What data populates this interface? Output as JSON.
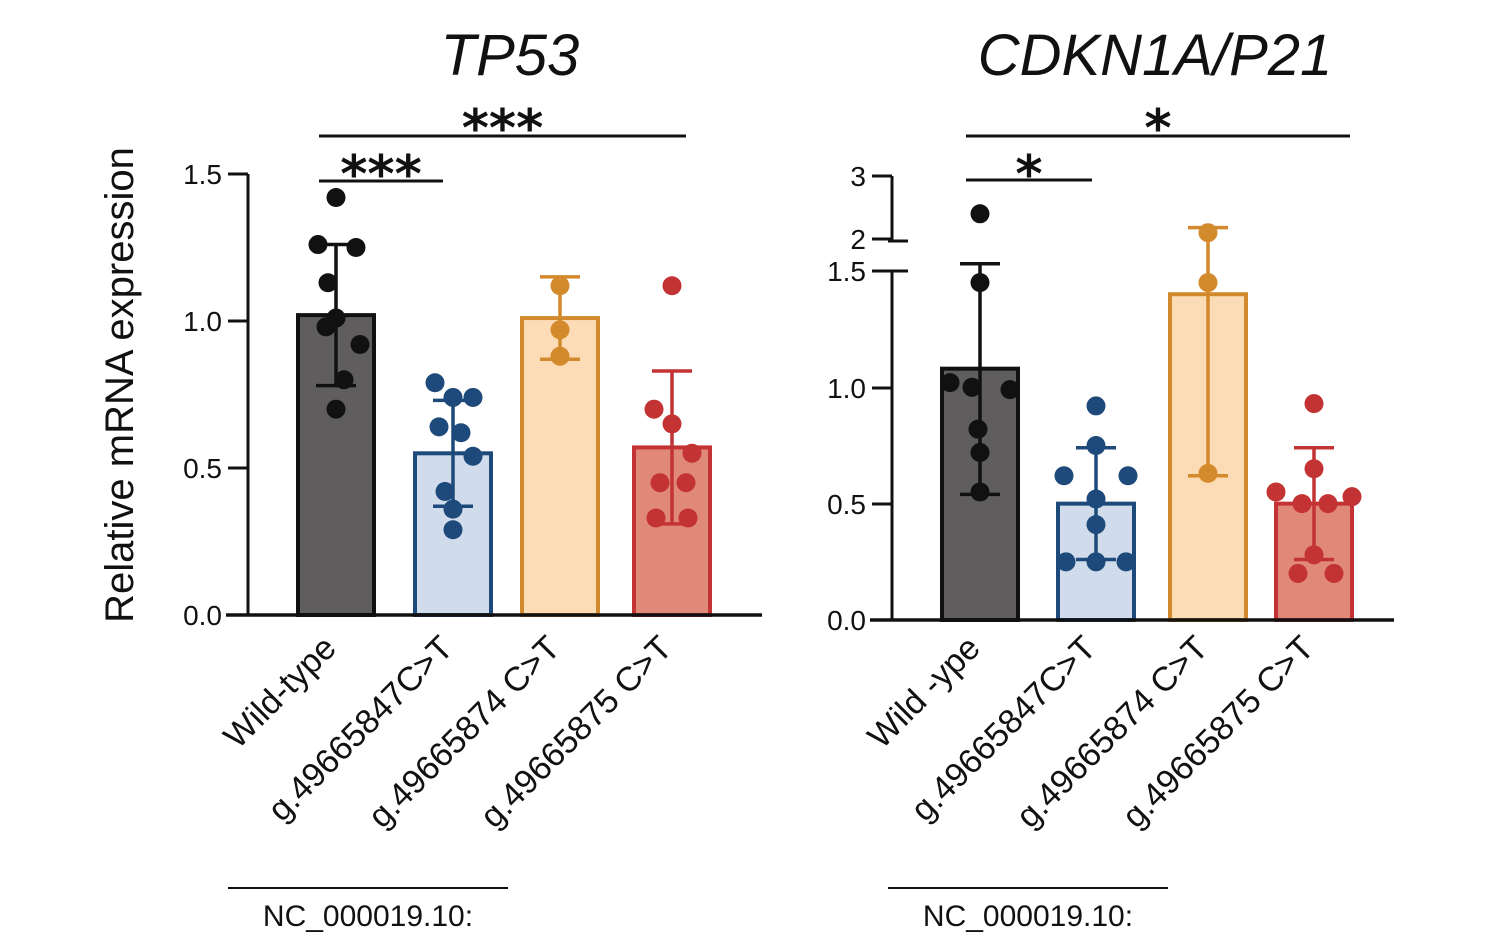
{
  "y_axis_label": "Relative mRNA expression",
  "group_label": "NC_000019.10:",
  "chart_data": [
    {
      "type": "bar",
      "title": "TP53",
      "ylabel": "Relative mRNA expression",
      "ylim": [
        0,
        1.5
      ],
      "yticks": [
        "0.0",
        "0.5",
        "1.0",
        "1.5"
      ],
      "categories": [
        "Wild-type",
        "g.49665847C>T",
        "g.49665874 C>T",
        "g.49665875 C>T"
      ],
      "values": [
        1.02,
        0.55,
        1.01,
        0.57
      ],
      "errors": [
        0.24,
        0.18,
        0.14,
        0.26
      ],
      "points": [
        [
          1.42,
          1.26,
          1.25,
          1.13,
          1.01,
          0.98,
          0.92,
          0.8,
          0.7
        ],
        [
          0.79,
          0.74,
          0.74,
          0.64,
          0.62,
          0.54,
          0.42,
          0.36,
          0.29
        ],
        [
          1.12,
          0.97,
          0.88
        ],
        [
          1.12,
          0.7,
          0.65,
          0.55,
          0.45,
          0.45,
          0.33,
          0.33
        ]
      ],
      "fills": [
        "#5f5d5e",
        "#d0dbeb",
        "#fcdcb6",
        "#e0887a"
      ],
      "strokes": [
        "#111111",
        "#1d4a7a",
        "#d38a2c",
        "#c33333"
      ],
      "dotColors": [
        "#111111",
        "#1d4a7a",
        "#d38a2c",
        "#c33333"
      ],
      "significance": [
        {
          "from": 0,
          "to": 1,
          "label": "***"
        },
        {
          "from": 0,
          "to": 3,
          "label": "***"
        }
      ]
    },
    {
      "type": "bar",
      "title": "CDKN1A/P21",
      "ylabel": "Relative mRNA expression",
      "ylim": [
        0,
        3
      ],
      "axis_break": [
        1.5,
        2
      ],
      "yticks": [
        "0.0",
        "0.5",
        "1.0",
        "1.5",
        "2",
        "3"
      ],
      "categories": [
        "Wild -ype",
        "g.49665847C>T",
        "g.49665874 C>T",
        "g.49665875 C>T"
      ],
      "values": [
        1.08,
        0.5,
        1.4,
        0.5
      ],
      "errors": [
        0.54,
        0.24,
        0.78,
        0.24
      ],
      "points": [
        [
          2.4,
          1.45,
          1.02,
          1.0,
          0.99,
          0.82,
          0.72,
          0.55
        ],
        [
          0.92,
          0.75,
          0.62,
          0.62,
          0.52,
          0.41,
          0.25,
          0.25,
          0.25
        ],
        [
          2.1,
          1.45,
          0.63
        ],
        [
          0.93,
          0.65,
          0.55,
          0.53,
          0.5,
          0.5,
          0.28,
          0.2,
          0.2
        ]
      ],
      "fills": [
        "#5f5d5e",
        "#d0dbeb",
        "#fcdcb6",
        "#e0887a"
      ],
      "strokes": [
        "#111111",
        "#1d4a7a",
        "#d38a2c",
        "#c33333"
      ],
      "dotColors": [
        "#111111",
        "#1d4a7a",
        "#d38a2c",
        "#c33333"
      ],
      "significance": [
        {
          "from": 0,
          "to": 1,
          "label": "*"
        },
        {
          "from": 0,
          "to": 3,
          "label": "*"
        }
      ]
    }
  ]
}
